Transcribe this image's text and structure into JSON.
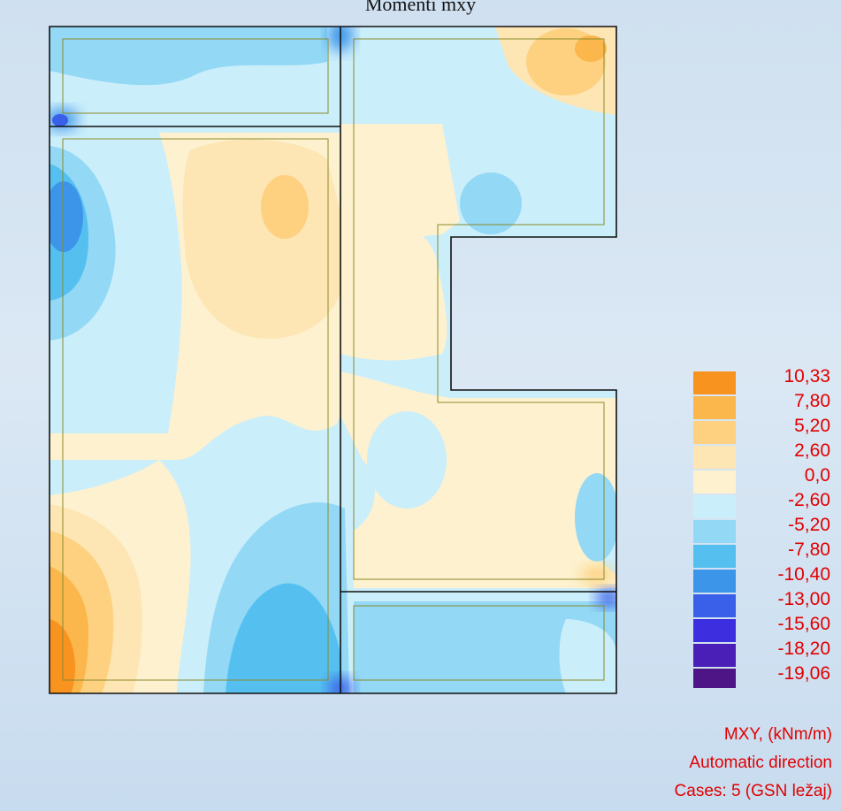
{
  "title": "Momenti mxy",
  "legend": {
    "entries": [
      {
        "value": "10,33",
        "color": "#f7931e"
      },
      {
        "value": "7,80",
        "color": "#fbb64c"
      },
      {
        "value": "5,20",
        "color": "#fdd17f"
      },
      {
        "value": "2,60",
        "color": "#fde5b4"
      },
      {
        "value": "0,0",
        "color": "#fdf1cf"
      },
      {
        "value": "-2,60",
        "color": "#cbeefb"
      },
      {
        "value": "-5,20",
        "color": "#93d8f5"
      },
      {
        "value": "-7,80",
        "color": "#55c0f0"
      },
      {
        "value": "-10,40",
        "color": "#3d95ea"
      },
      {
        "value": "-13,00",
        "color": "#3a5fe8"
      },
      {
        "value": "-15,60",
        "color": "#3d2fe0"
      },
      {
        "value": "-18,20",
        "color": "#4a1fb8"
      },
      {
        "value": "-19,06",
        "color": "#4d1585"
      }
    ]
  },
  "info": {
    "quantity": "MXY, (kNm/m)",
    "direction": "Automatic direction",
    "cases": "Cases: 5 (GSN ležaj)"
  }
}
